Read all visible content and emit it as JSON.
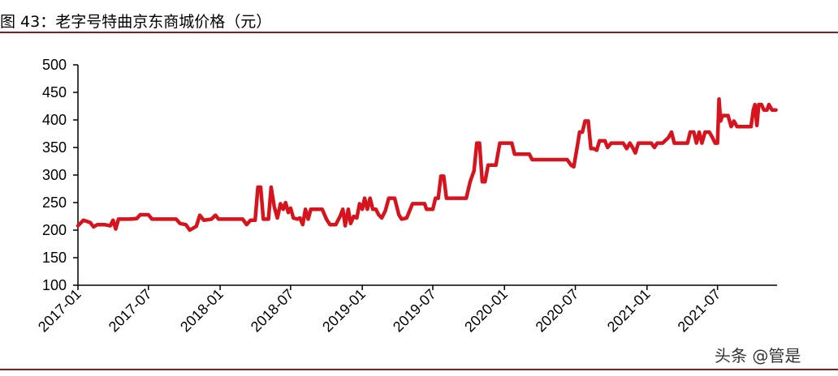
{
  "title": "图 43：老字号特曲京东商城价格（元）",
  "watermark": "头条 @管是",
  "chart_data": {
    "type": "line",
    "title": "",
    "xlabel": "",
    "ylabel": "",
    "ylim": [
      100,
      500
    ],
    "yticks": [
      100,
      150,
      200,
      250,
      300,
      350,
      400,
      450,
      500
    ],
    "xticks": [
      "2017-01",
      "2017-07",
      "2018-01",
      "2018-07",
      "2019-01",
      "2019-07",
      "2020-01",
      "2020-07",
      "2021-01",
      "2021-07"
    ],
    "x_start": "2017-01",
    "x_end": "2021-12",
    "grid": false,
    "legend": "none",
    "series": [
      {
        "name": "",
        "color": "#d7141e",
        "points": [
          [
            "2017-01-01",
            208
          ],
          [
            "2017-01-15",
            218
          ],
          [
            "2017-02-01",
            214
          ],
          [
            "2017-02-10",
            206
          ],
          [
            "2017-02-20",
            210
          ],
          [
            "2017-03-10",
            210
          ],
          [
            "2017-03-25",
            208
          ],
          [
            "2017-04-01",
            218
          ],
          [
            "2017-04-08",
            202
          ],
          [
            "2017-04-15",
            220
          ],
          [
            "2017-05-15",
            220
          ],
          [
            "2017-06-01",
            221
          ],
          [
            "2017-06-10",
            228
          ],
          [
            "2017-07-01",
            228
          ],
          [
            "2017-07-10",
            220
          ],
          [
            "2017-08-15",
            220
          ],
          [
            "2017-09-10",
            220
          ],
          [
            "2017-09-20",
            212
          ],
          [
            "2017-10-05",
            210
          ],
          [
            "2017-10-15",
            200
          ],
          [
            "2017-11-01",
            207
          ],
          [
            "2017-11-10",
            227
          ],
          [
            "2017-11-20",
            218
          ],
          [
            "2017-12-10",
            220
          ],
          [
            "2017-12-20",
            227
          ],
          [
            "2017-12-28",
            220
          ],
          [
            "2018-02-15",
            220
          ],
          [
            "2018-02-28",
            220
          ],
          [
            "2018-03-10",
            210
          ],
          [
            "2018-03-20",
            218
          ],
          [
            "2018-04-01",
            218
          ],
          [
            "2018-04-08",
            278
          ],
          [
            "2018-04-15",
            278
          ],
          [
            "2018-04-22",
            220
          ],
          [
            "2018-05-05",
            220
          ],
          [
            "2018-05-12",
            278
          ],
          [
            "2018-05-20",
            242
          ],
          [
            "2018-05-28",
            222
          ],
          [
            "2018-06-05",
            248
          ],
          [
            "2018-06-12",
            238
          ],
          [
            "2018-06-18",
            250
          ],
          [
            "2018-06-25",
            232
          ],
          [
            "2018-07-01",
            240
          ],
          [
            "2018-07-08",
            222
          ],
          [
            "2018-07-18",
            220
          ],
          [
            "2018-07-25",
            222
          ],
          [
            "2018-08-01",
            210
          ],
          [
            "2018-08-08",
            238
          ],
          [
            "2018-08-15",
            220
          ],
          [
            "2018-08-22",
            238
          ],
          [
            "2018-09-20",
            238
          ],
          [
            "2018-10-01",
            220
          ],
          [
            "2018-10-10",
            210
          ],
          [
            "2018-10-25",
            210
          ],
          [
            "2018-11-05",
            225
          ],
          [
            "2018-11-12",
            238
          ],
          [
            "2018-11-18",
            208
          ],
          [
            "2018-11-26",
            238
          ],
          [
            "2018-12-02",
            212
          ],
          [
            "2018-12-10",
            225
          ],
          [
            "2018-12-18",
            222
          ],
          [
            "2018-12-25",
            248
          ],
          [
            "2019-01-01",
            238
          ],
          [
            "2019-01-07",
            258
          ],
          [
            "2019-01-14",
            238
          ],
          [
            "2019-01-21",
            258
          ],
          [
            "2019-01-28",
            238
          ],
          [
            "2019-02-05",
            238
          ],
          [
            "2019-02-12",
            228
          ],
          [
            "2019-02-20",
            222
          ],
          [
            "2019-03-01",
            235
          ],
          [
            "2019-03-10",
            258
          ],
          [
            "2019-03-25",
            258
          ],
          [
            "2019-04-05",
            228
          ],
          [
            "2019-04-12",
            220
          ],
          [
            "2019-04-25",
            222
          ],
          [
            "2019-05-10",
            248
          ],
          [
            "2019-06-01",
            248
          ],
          [
            "2019-06-10",
            248
          ],
          [
            "2019-06-15",
            238
          ],
          [
            "2019-07-01",
            238
          ],
          [
            "2019-07-08",
            258
          ],
          [
            "2019-07-15",
            258
          ],
          [
            "2019-07-22",
            298
          ],
          [
            "2019-07-29",
            298
          ],
          [
            "2019-08-05",
            258
          ],
          [
            "2019-08-20",
            258
          ],
          [
            "2019-09-10",
            258
          ],
          [
            "2019-09-25",
            258
          ],
          [
            "2019-10-05",
            288
          ],
          [
            "2019-10-15",
            308
          ],
          [
            "2019-10-22",
            358
          ],
          [
            "2019-10-29",
            358
          ],
          [
            "2019-11-05",
            288
          ],
          [
            "2019-11-12",
            288
          ],
          [
            "2019-11-20",
            318
          ],
          [
            "2019-12-10",
            318
          ],
          [
            "2019-12-20",
            358
          ],
          [
            "2020-01-10",
            358
          ],
          [
            "2020-01-20",
            358
          ],
          [
            "2020-01-27",
            338
          ],
          [
            "2020-02-25",
            338
          ],
          [
            "2020-03-05",
            338
          ],
          [
            "2020-03-12",
            328
          ],
          [
            "2020-04-15",
            328
          ],
          [
            "2020-05-20",
            328
          ],
          [
            "2020-06-10",
            328
          ],
          [
            "2020-06-20",
            318
          ],
          [
            "2020-06-27",
            315
          ],
          [
            "2020-07-05",
            348
          ],
          [
            "2020-07-12",
            378
          ],
          [
            "2020-07-19",
            378
          ],
          [
            "2020-07-26",
            398
          ],
          [
            "2020-08-03",
            398
          ],
          [
            "2020-08-10",
            348
          ],
          [
            "2020-08-17",
            348
          ],
          [
            "2020-08-25",
            345
          ],
          [
            "2020-09-01",
            362
          ],
          [
            "2020-09-15",
            362
          ],
          [
            "2020-09-22",
            350
          ],
          [
            "2020-10-01",
            358
          ],
          [
            "2020-10-20",
            358
          ],
          [
            "2020-11-01",
            358
          ],
          [
            "2020-11-10",
            348
          ],
          [
            "2020-11-18",
            358
          ],
          [
            "2020-11-25",
            350
          ],
          [
            "2020-12-02",
            340
          ],
          [
            "2020-12-10",
            358
          ],
          [
            "2021-01-05",
            358
          ],
          [
            "2021-01-12",
            358
          ],
          [
            "2021-01-20",
            350
          ],
          [
            "2021-01-27",
            358
          ],
          [
            "2021-02-10",
            358
          ],
          [
            "2021-02-25",
            368
          ],
          [
            "2021-03-05",
            378
          ],
          [
            "2021-03-12",
            358
          ],
          [
            "2021-03-25",
            358
          ],
          [
            "2021-04-15",
            358
          ],
          [
            "2021-04-22",
            378
          ],
          [
            "2021-05-01",
            378
          ],
          [
            "2021-05-08",
            358
          ],
          [
            "2021-05-15",
            378
          ],
          [
            "2021-05-22",
            358
          ],
          [
            "2021-05-30",
            378
          ],
          [
            "2021-06-10",
            378
          ],
          [
            "2021-06-18",
            368
          ],
          [
            "2021-06-25",
            358
          ],
          [
            "2021-07-01",
            358
          ],
          [
            "2021-07-05",
            438
          ],
          [
            "2021-07-09",
            398
          ],
          [
            "2021-07-14",
            408
          ],
          [
            "2021-07-22",
            408
          ],
          [
            "2021-07-28",
            408
          ],
          [
            "2021-08-05",
            388
          ],
          [
            "2021-08-12",
            398
          ],
          [
            "2021-08-20",
            388
          ],
          [
            "2021-09-01",
            388
          ],
          [
            "2021-09-15",
            388
          ],
          [
            "2021-09-25",
            388
          ],
          [
            "2021-10-01",
            418
          ],
          [
            "2021-10-05",
            428
          ],
          [
            "2021-10-10",
            390
          ],
          [
            "2021-10-15",
            428
          ],
          [
            "2021-10-22",
            428
          ],
          [
            "2021-10-28",
            418
          ],
          [
            "2021-11-05",
            418
          ],
          [
            "2021-11-10",
            428
          ],
          [
            "2021-11-18",
            418
          ],
          [
            "2021-11-28",
            418
          ]
        ]
      }
    ]
  }
}
